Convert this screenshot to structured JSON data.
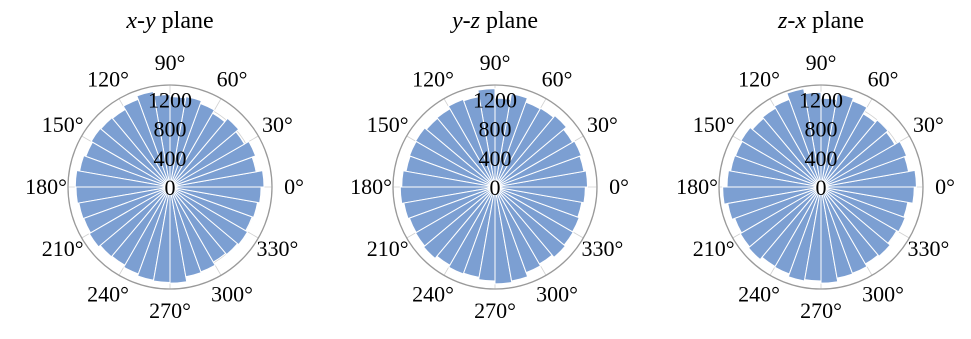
{
  "colors": {
    "bar_fill": "#7c9fd2",
    "bar_edge": "#ffffff",
    "axis": "#9a9a9a",
    "grid": "#d0d0d0",
    "text": "#000000"
  },
  "chart_data": [
    {
      "type": "bar",
      "projection": "polar",
      "title_parts": [
        {
          "text": "x",
          "italic": true
        },
        {
          "text": "-",
          "italic": false
        },
        {
          "text": "y",
          "italic": true
        },
        {
          "text": " plane",
          "italic": false
        }
      ],
      "angle_labels": [
        "0°",
        "30°",
        "60°",
        "90°",
        "120°",
        "150°",
        "180°",
        "210°",
        "240°",
        "270°",
        "300°",
        "330°"
      ],
      "radial_ticks": [
        0,
        400,
        800,
        1200
      ],
      "radial_tick_labels": [
        "0",
        "400",
        "800",
        "1200"
      ],
      "rlim": [
        0,
        1400
      ],
      "bin_width_deg": 10,
      "bin_start_deg": [
        0,
        10,
        20,
        30,
        40,
        50,
        60,
        70,
        80,
        90,
        100,
        110,
        120,
        130,
        140,
        150,
        160,
        170,
        180,
        190,
        200,
        210,
        220,
        230,
        240,
        250,
        260,
        270,
        280,
        290,
        300,
        310,
        320,
        330,
        340,
        350
      ],
      "values": [
        1290,
        1200,
        1250,
        1180,
        1230,
        1170,
        1220,
        1260,
        1240,
        1270,
        1330,
        1280,
        1230,
        1240,
        1250,
        1230,
        1260,
        1300,
        1290,
        1270,
        1260,
        1280,
        1250,
        1240,
        1270,
        1300,
        1310,
        1320,
        1250,
        1240,
        1190,
        1210,
        1230,
        1200,
        1220,
        1250
      ],
      "grid": true
    },
    {
      "type": "bar",
      "projection": "polar",
      "title_parts": [
        {
          "text": "y",
          "italic": true
        },
        {
          "text": "-",
          "italic": false
        },
        {
          "text": "z",
          "italic": true
        },
        {
          "text": " plane",
          "italic": false
        }
      ],
      "angle_labels": [
        "0°",
        "30°",
        "60°",
        "90°",
        "120°",
        "150°",
        "180°",
        "210°",
        "240°",
        "270°",
        "300°",
        "330°"
      ],
      "radial_ticks": [
        0,
        400,
        800,
        1200
      ],
      "radial_tick_labels": [
        "0",
        "400",
        "800",
        "1200"
      ],
      "rlim": [
        0,
        1400
      ],
      "bin_width_deg": 10,
      "bin_start_deg": [
        0,
        10,
        20,
        30,
        40,
        50,
        60,
        70,
        80,
        90,
        100,
        110,
        120,
        130,
        140,
        150,
        160,
        170,
        180,
        190,
        200,
        210,
        220,
        230,
        240,
        250,
        260,
        270,
        280,
        290,
        300,
        310,
        320,
        330,
        340,
        350
      ],
      "values": [
        1270,
        1240,
        1260,
        1230,
        1280,
        1250,
        1240,
        1300,
        1220,
        1350,
        1260,
        1280,
        1240,
        1230,
        1260,
        1250,
        1240,
        1280,
        1300,
        1270,
        1250,
        1260,
        1280,
        1240,
        1270,
        1260,
        1290,
        1330,
        1310,
        1250,
        1220,
        1260,
        1240,
        1230,
        1210,
        1240
      ],
      "grid": true
    },
    {
      "type": "bar",
      "projection": "polar",
      "title_parts": [
        {
          "text": "z",
          "italic": true
        },
        {
          "text": "-",
          "italic": false
        },
        {
          "text": "x",
          "italic": true
        },
        {
          "text": " plane",
          "italic": false
        }
      ],
      "angle_labels": [
        "0°",
        "30°",
        "60°",
        "90°",
        "120°",
        "150°",
        "180°",
        "210°",
        "240°",
        "270°",
        "300°",
        "330°"
      ],
      "radial_ticks": [
        0,
        400,
        800,
        1200
      ],
      "radial_tick_labels": [
        "0",
        "400",
        "800",
        "1200"
      ],
      "rlim": [
        0,
        1400
      ],
      "bin_width_deg": 10,
      "bin_start_deg": [
        0,
        10,
        20,
        30,
        40,
        50,
        60,
        70,
        80,
        90,
        100,
        110,
        120,
        130,
        140,
        150,
        160,
        170,
        180,
        190,
        200,
        210,
        220,
        230,
        240,
        250,
        260,
        270,
        280,
        290,
        300,
        310,
        320,
        330,
        340,
        350
      ],
      "values": [
        1310,
        1220,
        1250,
        1170,
        1200,
        1160,
        1260,
        1300,
        1220,
        1300,
        1370,
        1280,
        1250,
        1230,
        1270,
        1250,
        1260,
        1290,
        1350,
        1300,
        1260,
        1280,
        1300,
        1260,
        1270,
        1310,
        1290,
        1320,
        1270,
        1260,
        1220,
        1240,
        1200,
        1230,
        1210,
        1280
      ],
      "grid": true
    }
  ]
}
